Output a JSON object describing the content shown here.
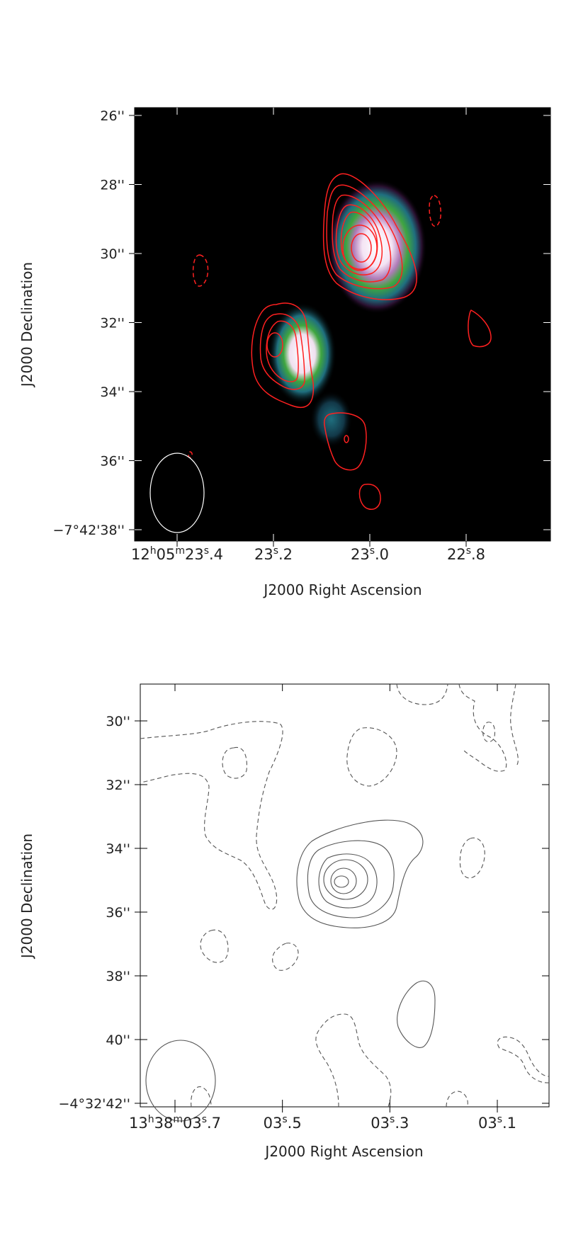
{
  "chart_data": [
    {
      "type": "heatmap",
      "panel": "top",
      "colormap": [
        "#000000",
        "#2a1030",
        "#1f6f7f",
        "#3fa63f",
        "#e6d0e6",
        "#ffffff"
      ],
      "contour_color": "#ff2020",
      "xlabel": "J2000 Right Ascension",
      "ylabel": "J2000 Declination",
      "x_ticks": [
        {
          "value": 23.4,
          "label_main": "12",
          "sup1": "h",
          "mid": "05",
          "sup2": "m",
          "tail": "23",
          "sup3": "s",
          "frac": ".4"
        },
        {
          "value": 23.2,
          "label_main": "23",
          "sup3": "s",
          "frac": ".2"
        },
        {
          "value": 23.0,
          "label_main": "23",
          "sup3": "s",
          "frac": ".0"
        },
        {
          "value": 22.8,
          "label_main": "22",
          "sup3": "s",
          "frac": ".8"
        }
      ],
      "y_ticks": [
        {
          "value": 26,
          "label": "26''"
        },
        {
          "value": 28,
          "label": "28''"
        },
        {
          "value": 30,
          "label": "30''"
        },
        {
          "value": 32,
          "label": "32''"
        },
        {
          "value": 34,
          "label": "34''"
        },
        {
          "value": 36,
          "label": "36''"
        },
        {
          "value": 38,
          "label": "−7°42'38''"
        }
      ],
      "sources": [
        {
          "ra": 22.985,
          "dec": 29.8,
          "peak": 1.0
        },
        {
          "ra": 23.14,
          "dec": 32.9,
          "peak": 0.95
        },
        {
          "ra": 23.08,
          "dec": 34.8,
          "peak": 0.25
        }
      ],
      "beam": {
        "ra": 23.35,
        "dec": 37.0,
        "shape": "ellipse"
      }
    },
    {
      "type": "contour",
      "panel": "bottom",
      "contour_color": "#555555",
      "xlabel": "J2000 Right Ascension",
      "ylabel": "J2000 Declination",
      "x_ticks": [
        {
          "value": 3.7,
          "label_main": "13",
          "sup1": "h",
          "mid": "38",
          "sup2": "m",
          "tail": "03",
          "sup3": "s",
          "frac": ".7"
        },
        {
          "value": 3.5,
          "label_main": "03",
          "sup3": "s",
          "frac": ".5"
        },
        {
          "value": 3.3,
          "label_main": "03",
          "sup3": "s",
          "frac": ".3"
        },
        {
          "value": 3.1,
          "label_main": "03",
          "sup3": "s",
          "frac": ".1"
        }
      ],
      "y_ticks": [
        {
          "value": 30,
          "label": "30''"
        },
        {
          "value": 32,
          "label": "32''"
        },
        {
          "value": 34,
          "label": "34''"
        },
        {
          "value": 36,
          "label": "36''"
        },
        {
          "value": 38,
          "label": "38''"
        },
        {
          "value": 40,
          "label": "40''"
        },
        {
          "value": 42,
          "label": "−4°32'42''"
        }
      ],
      "sources": [
        {
          "ra": 3.39,
          "dec": 35.0,
          "levels": 5
        }
      ],
      "beam": {
        "ra": 3.69,
        "dec": 40.8,
        "shape": "ellipse"
      }
    }
  ]
}
